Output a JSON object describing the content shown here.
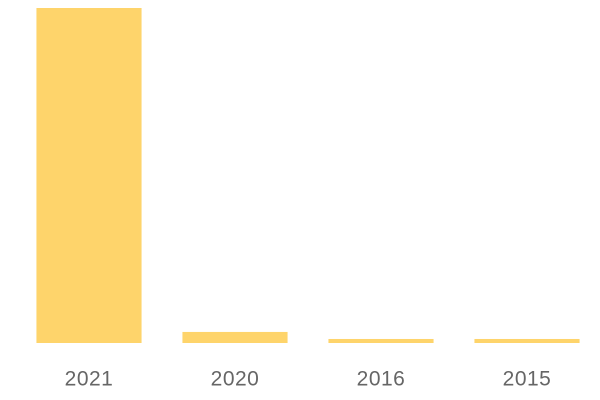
{
  "chart_data": {
    "type": "bar",
    "categories": [
      "2021",
      "2020",
      "2016",
      "2015"
    ],
    "values": [
      100,
      3.3,
      1.2,
      1.2
    ],
    "color": "#fed46b",
    "ylim": [
      0,
      100
    ]
  }
}
